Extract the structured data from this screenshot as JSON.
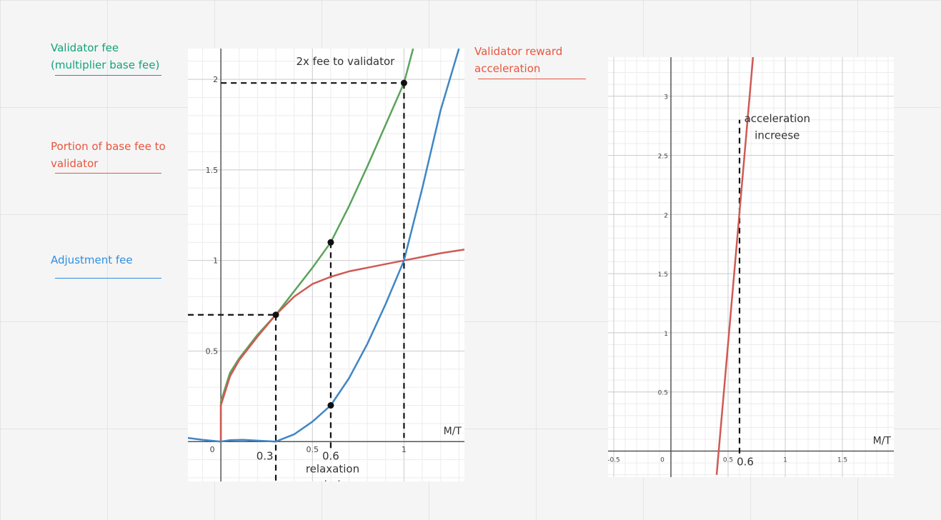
{
  "legend": [
    {
      "text_lines": [
        "Validator fee",
        "(multiplier base fee)"
      ],
      "color": "#12a37a"
    },
    {
      "text_lines": [
        "Portion of base fee to",
        "validator"
      ],
      "color": "#e8553f"
    },
    {
      "text_lines": [
        "Adjustment fee"
      ],
      "color": "#2f8fe0"
    }
  ],
  "top_label": {
    "text_lines": [
      "Validator reward",
      "acceleration"
    ],
    "color": "#e8553f"
  },
  "chart_data": [
    {
      "type": "line",
      "xlabel": "M/T",
      "ylabel": "",
      "xlim": [
        -0.18,
        1.33
      ],
      "ylim": [
        -0.22,
        2.17
      ],
      "grid": true,
      "x_ticks": [
        {
          "value": 0,
          "label": "0"
        },
        {
          "value": 0.5,
          "label": "0.5"
        },
        {
          "value": 1,
          "label": "1"
        }
      ],
      "y_ticks": [
        {
          "value": 0.5,
          "label": "0.5"
        },
        {
          "value": 1,
          "label": "1"
        },
        {
          "value": 1.5,
          "label": "1.5"
        },
        {
          "value": 2,
          "label": "2"
        }
      ],
      "series": [
        {
          "key": "validator_fee",
          "color": "#5aa35c",
          "points": [
            [
              0,
              0
            ],
            [
              0,
              0.22
            ],
            [
              0.05,
              0.38
            ],
            [
              0.1,
              0.46
            ],
            [
              0.2,
              0.59
            ],
            [
              0.3,
              0.7
            ],
            [
              0.4,
              0.83
            ],
            [
              0.5,
              0.96
            ],
            [
              0.6,
              1.1
            ],
            [
              0.7,
              1.3
            ],
            [
              0.8,
              1.52
            ],
            [
              0.9,
              1.75
            ],
            [
              1.0,
              1.98
            ],
            [
              1.05,
              2.17
            ]
          ]
        },
        {
          "key": "portion_to_validator",
          "color": "#cf5a54",
          "points": [
            [
              0,
              0
            ],
            [
              0,
              0.2
            ],
            [
              0.05,
              0.36
            ],
            [
              0.1,
              0.45
            ],
            [
              0.2,
              0.58
            ],
            [
              0.3,
              0.7
            ],
            [
              0.4,
              0.8
            ],
            [
              0.5,
              0.87
            ],
            [
              0.6,
              0.91
            ],
            [
              0.7,
              0.94
            ],
            [
              0.8,
              0.96
            ],
            [
              0.9,
              0.98
            ],
            [
              1.0,
              1.0
            ],
            [
              1.1,
              1.02
            ],
            [
              1.2,
              1.04
            ],
            [
              1.33,
              1.06
            ]
          ]
        },
        {
          "key": "adjustment_fee",
          "color": "#3f86c6",
          "points": [
            [
              -0.18,
              0.02
            ],
            [
              -0.1,
              0.01
            ],
            [
              0,
              0
            ],
            [
              0.05,
              0.008
            ],
            [
              0.12,
              0.01
            ],
            [
              0.2,
              0.005
            ],
            [
              0.3,
              0
            ],
            [
              0.4,
              0.04
            ],
            [
              0.5,
              0.11
            ],
            [
              0.6,
              0.2
            ],
            [
              0.7,
              0.35
            ],
            [
              0.8,
              0.54
            ],
            [
              0.9,
              0.76
            ],
            [
              1.0,
              1.0
            ],
            [
              1.1,
              1.4
            ],
            [
              1.2,
              1.83
            ],
            [
              1.3,
              2.17
            ]
          ]
        }
      ],
      "points": [
        {
          "x": 0.3,
          "y": 0.7
        },
        {
          "x": 0.6,
          "y": 1.1
        },
        {
          "x": 0.6,
          "y": 0.2
        },
        {
          "x": 1.0,
          "y": 1.98
        }
      ],
      "guides": [
        {
          "from": [
            -0.18,
            0.7
          ],
          "to": [
            0.3,
            0.7
          ]
        },
        {
          "from": [
            0.3,
            0.7
          ],
          "to": [
            0.3,
            -0.22
          ]
        },
        {
          "from": [
            0.6,
            1.1
          ],
          "to": [
            0.6,
            -0.05
          ]
        },
        {
          "from": [
            0,
            1.98
          ],
          "to": [
            1.0,
            1.98
          ]
        },
        {
          "from": [
            1.0,
            1.98
          ],
          "to": [
            1.0,
            0.02
          ]
        }
      ],
      "annotations": [
        {
          "text": "2x fee to validator",
          "x": 0.68,
          "y": 2.08
        },
        {
          "text": "0.3",
          "x": 0.24,
          "y": -0.1
        },
        {
          "text": "0.6",
          "x": 0.6,
          "y": -0.1
        },
        {
          "text": "relaxation",
          "x": 0.61,
          "y": -0.17
        },
        {
          "text": "period",
          "x": 0.56,
          "y": -0.26
        }
      ]
    },
    {
      "type": "line",
      "xlabel": "M/T",
      "ylabel": "",
      "xlim": [
        -0.55,
        1.95
      ],
      "ylim": [
        -0.22,
        3.33
      ],
      "grid": true,
      "x_ticks": [
        {
          "value": -0.5,
          "label": "-0.5"
        },
        {
          "value": 0,
          "label": "0"
        },
        {
          "value": 0.5,
          "label": "0.5"
        },
        {
          "value": 1,
          "label": "1"
        },
        {
          "value": 1.5,
          "label": "1.5"
        }
      ],
      "y_ticks": [
        {
          "value": 0.5,
          "label": "0.5"
        },
        {
          "value": 1,
          "label": "1"
        },
        {
          "value": 1.5,
          "label": "1.5"
        },
        {
          "value": 2,
          "label": "2"
        },
        {
          "value": 2.5,
          "label": "2.5"
        },
        {
          "value": 3,
          "label": "3"
        }
      ],
      "series": [
        {
          "key": "validator_reward_acceleration",
          "color": "#cf5a54",
          "points": [
            [
              0.4,
              -0.2
            ],
            [
              0.72,
              3.35
            ]
          ]
        }
      ],
      "guides": [
        {
          "from": [
            0.6,
            -0.02
          ],
          "to": [
            0.6,
            2.8
          ]
        }
      ],
      "annotations": [
        {
          "text": "acceleration",
          "x": 0.93,
          "y": 2.78
        },
        {
          "text": "increese",
          "x": 0.93,
          "y": 2.64
        },
        {
          "text": "0.6",
          "x": 0.65,
          "y": -0.12
        }
      ]
    }
  ]
}
